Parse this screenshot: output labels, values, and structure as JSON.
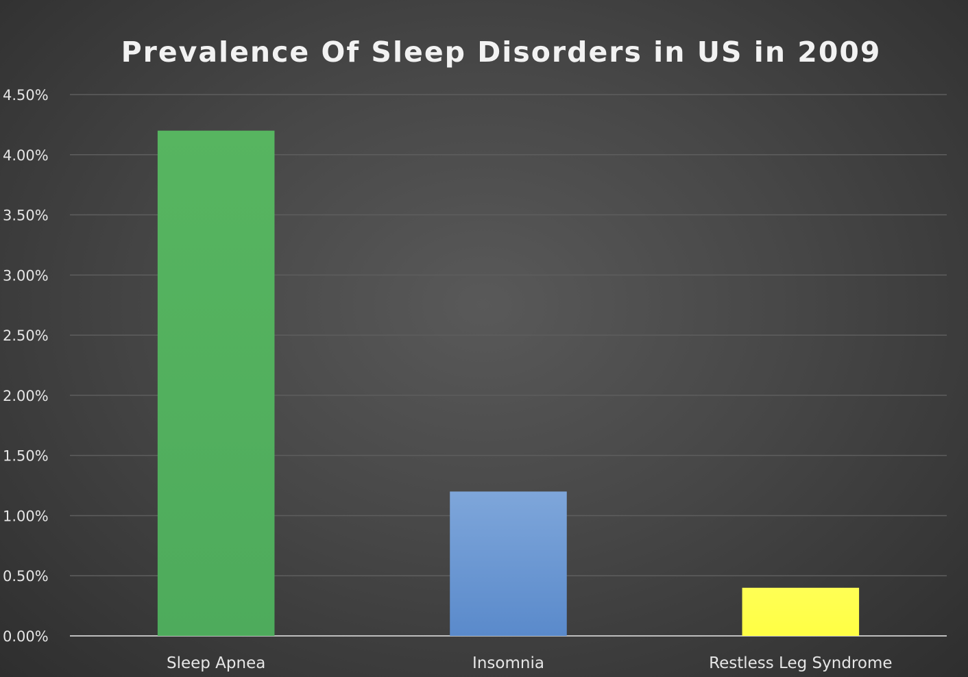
{
  "chart_data": {
    "type": "bar",
    "title": "Prevalence Of Sleep Disorders in US in 2009",
    "xlabel": "",
    "ylabel": "",
    "categories": [
      "Sleep Apnea",
      "Insomnia",
      "Restless Leg Syndrome"
    ],
    "values": [
      4.2,
      1.2,
      0.4
    ],
    "unit": "%",
    "ylim": [
      0,
      4.5
    ],
    "yticks": [
      "0.00%",
      "0.50%",
      "1.00%",
      "1.50%",
      "2.00%",
      "2.50%",
      "3.00%",
      "3.50%",
      "4.00%",
      "4.50%"
    ],
    "grid": true,
    "legend": "none",
    "colors": [
      [
        "#57b560",
        "#4eab5c"
      ],
      [
        "#7ea6da",
        "#5a8acb"
      ],
      [
        "#ffff55",
        "#ffff44"
      ]
    ]
  }
}
